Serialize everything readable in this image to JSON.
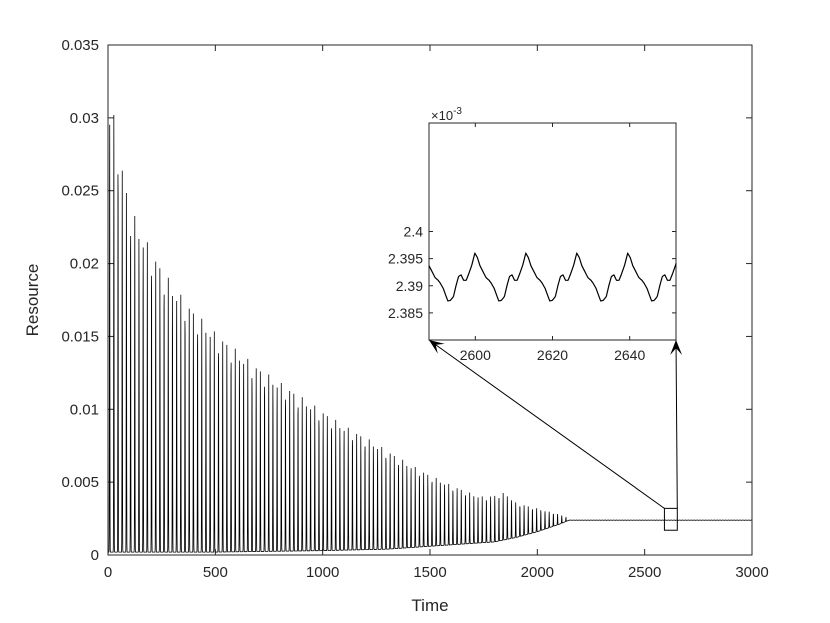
{
  "chart_data": [
    {
      "type": "line",
      "role": "main",
      "xlabel": "Time",
      "ylabel": "Resource",
      "xlim": [
        0,
        3000
      ],
      "ylim": [
        0,
        0.035
      ],
      "xticks": [
        0,
        500,
        1000,
        1500,
        2000,
        2500,
        3000
      ],
      "xtick_labels": [
        "0",
        "500",
        "1000",
        "1500",
        "2000",
        "2500",
        "3000"
      ],
      "yticks": [
        0,
        0.005,
        0.01,
        0.015,
        0.02,
        0.025,
        0.03,
        0.035
      ],
      "ytick_labels": [
        "0",
        "0.005",
        "0.01",
        "0.015",
        "0.02",
        "0.025",
        "0.03",
        "0.035"
      ],
      "grid": false,
      "line_color": "#000000",
      "series": [
        {
          "oscillation_period": 19.5,
          "equilibrium": 0.00239,
          "peak_envelope": {
            "x": [
              20,
              40,
              70,
              100,
              150,
              200,
              300,
              400,
              500,
              600,
              700,
              800,
              900,
              1000,
              1100,
              1200,
              1300,
              1400,
              1500,
              1600,
              1700,
              1750,
              1800,
              1850,
              1900,
              2000,
              2100,
              2150,
              3000
            ],
            "y": [
              0.0309,
              0.0291,
              0.0265,
              0.0241,
              0.0225,
              0.021,
              0.0186,
              0.0168,
              0.0153,
              0.0141,
              0.0129,
              0.0119,
              0.0109,
              0.0099,
              0.0089,
              0.0081,
              0.0072,
              0.0063,
              0.0055,
              0.0048,
              0.0042,
              0.004,
              0.0041,
              0.0043,
              0.0036,
              0.0032,
              0.0028,
              0.0025,
              0.00239
            ]
          },
          "trough_envelope": {
            "x": [
              0,
              500,
              1000,
              1300,
              1500,
              1700,
              1800,
              1900,
              2000,
              2100,
              2150,
              3000
            ],
            "y": [
              0.0002,
              0.0002,
              0.0003,
              0.0004,
              0.0006,
              0.0008,
              0.0009,
              0.0012,
              0.0016,
              0.0021,
              0.0024,
              0.00239
            ]
          }
        }
      ],
      "zoom_box": {
        "x": [
          2592,
          2652
        ],
        "y": [
          0.0017,
          0.0032
        ]
      }
    },
    {
      "type": "line",
      "role": "inset",
      "xlim": [
        2588,
        2652
      ],
      "ylim": [
        0.00238,
        0.00242
      ],
      "xticks": [
        2600,
        2620,
        2640
      ],
      "xtick_labels": [
        "2600",
        "2620",
        "2640"
      ],
      "yticks": [
        0.002385,
        0.00239,
        0.002395,
        0.0024
      ],
      "ytick_labels": [
        "2.385",
        "2.39",
        "2.395",
        "2.4"
      ],
      "y_multiplier_base": "×10",
      "y_multiplier_exponent": "-3",
      "grid": false,
      "line_color": "#000000",
      "series": [
        {
          "period": 13.2,
          "phase_x": 2588,
          "cycle_profile_u": [
            0,
            0.06,
            0.12,
            0.18,
            0.22,
            0.28,
            0.33,
            0.37,
            0.42,
            0.48,
            0.53,
            0.58,
            0.63,
            0.68,
            0.73,
            0.78,
            0.84,
            0.9,
            0.95,
            1.0
          ],
          "cycle_profile_y": [
            2.3937,
            2.3926,
            2.3915,
            2.391,
            2.3905,
            2.3895,
            2.3882,
            2.3872,
            2.3873,
            2.388,
            2.39,
            2.3917,
            2.392,
            2.391,
            2.391,
            2.3922,
            2.3938,
            2.396,
            2.3952,
            2.3937
          ]
        }
      ]
    }
  ]
}
